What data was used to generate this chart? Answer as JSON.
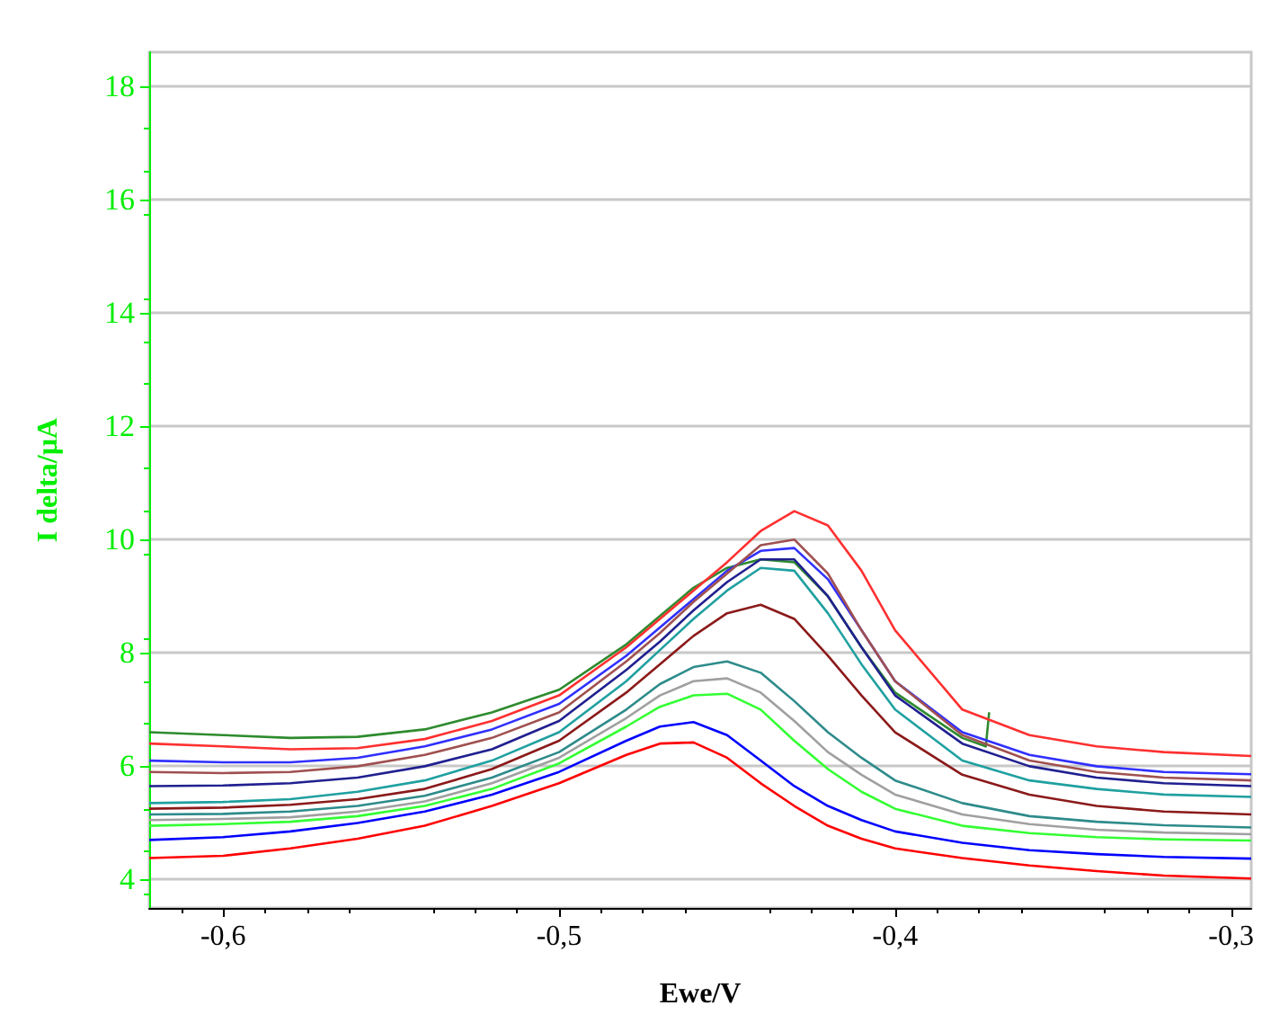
{
  "chart_data": {
    "type": "line",
    "xlabel": "Ewe/V",
    "ylabel": "I delta/µA",
    "x": [
      -0.622,
      -0.6,
      -0.58,
      -0.56,
      -0.54,
      -0.52,
      -0.5,
      -0.48,
      -0.47,
      -0.46,
      -0.45,
      -0.44,
      -0.43,
      -0.42,
      -0.41,
      -0.4,
      -0.38,
      -0.36,
      -0.34,
      -0.32,
      -0.294
    ],
    "xlim": [
      -0.622,
      -0.294
    ],
    "ylim": [
      3.5,
      18.6
    ],
    "xticks": [
      {
        "value": -0.6,
        "label": "-0,6"
      },
      {
        "value": -0.5,
        "label": "-0,5"
      },
      {
        "value": -0.4,
        "label": "-0,4"
      },
      {
        "value": -0.3,
        "label": "-0,3"
      }
    ],
    "yticks": [
      4,
      6,
      8,
      10,
      12,
      14,
      16,
      18
    ],
    "grid": "y",
    "marker": "none",
    "line_style": "solid",
    "series": [
      {
        "color": "#2e8b2e",
        "x": [
          -0.622,
          -0.6,
          -0.58,
          -0.56,
          -0.54,
          -0.52,
          -0.5,
          -0.48,
          -0.47,
          -0.46,
          -0.45,
          -0.44,
          -0.43,
          -0.42,
          -0.41,
          -0.4,
          -0.38,
          -0.373,
          -0.372
        ],
        "values": [
          6.6,
          6.55,
          6.5,
          6.52,
          6.65,
          6.95,
          7.35,
          8.15,
          8.65,
          9.15,
          9.5,
          9.65,
          9.6,
          9.0,
          8.1,
          7.3,
          6.5,
          6.35,
          6.95
        ]
      },
      {
        "color": "#ff3030",
        "values": [
          6.4,
          6.35,
          6.3,
          6.32,
          6.48,
          6.8,
          7.25,
          8.1,
          8.6,
          9.1,
          9.6,
          10.15,
          10.5,
          10.25,
          9.45,
          8.4,
          7.0,
          6.55,
          6.35,
          6.25,
          6.18
        ]
      },
      {
        "color": "#3030ff",
        "values": [
          6.1,
          6.07,
          6.07,
          6.15,
          6.35,
          6.65,
          7.1,
          7.95,
          8.45,
          8.95,
          9.45,
          9.8,
          9.85,
          9.3,
          8.4,
          7.5,
          6.6,
          6.2,
          6.0,
          5.9,
          5.86
        ]
      },
      {
        "color": "#a05050",
        "values": [
          5.9,
          5.88,
          5.9,
          6.0,
          6.2,
          6.5,
          6.95,
          7.85,
          8.35,
          8.9,
          9.4,
          9.9,
          10.0,
          9.4,
          8.4,
          7.5,
          6.55,
          6.1,
          5.9,
          5.8,
          5.75
        ]
      },
      {
        "color": "#202090",
        "values": [
          5.65,
          5.66,
          5.7,
          5.8,
          6.0,
          6.3,
          6.8,
          7.7,
          8.2,
          8.75,
          9.25,
          9.65,
          9.65,
          9.0,
          8.1,
          7.25,
          6.4,
          6.0,
          5.8,
          5.7,
          5.65
        ]
      },
      {
        "color": "#20a0a0",
        "values": [
          5.35,
          5.37,
          5.42,
          5.55,
          5.75,
          6.1,
          6.6,
          7.5,
          8.05,
          8.6,
          9.1,
          9.5,
          9.45,
          8.7,
          7.8,
          7.0,
          6.1,
          5.75,
          5.6,
          5.5,
          5.46
        ]
      },
      {
        "color": "#8b1a1a",
        "values": [
          5.25,
          5.27,
          5.32,
          5.42,
          5.6,
          5.95,
          6.45,
          7.3,
          7.8,
          8.3,
          8.7,
          8.85,
          8.6,
          7.95,
          7.25,
          6.6,
          5.85,
          5.5,
          5.3,
          5.2,
          5.15
        ]
      },
      {
        "color": "#2e8b8b",
        "values": [
          5.15,
          5.16,
          5.2,
          5.3,
          5.48,
          5.8,
          6.25,
          7.0,
          7.45,
          7.75,
          7.85,
          7.65,
          7.15,
          6.6,
          6.15,
          5.75,
          5.35,
          5.12,
          5.02,
          4.96,
          4.92
        ]
      },
      {
        "color": "#a0a0a0",
        "values": [
          5.05,
          5.07,
          5.1,
          5.2,
          5.38,
          5.7,
          6.15,
          6.85,
          7.25,
          7.5,
          7.55,
          7.3,
          6.8,
          6.25,
          5.85,
          5.5,
          5.15,
          4.98,
          4.88,
          4.83,
          4.8
        ]
      },
      {
        "color": "#33ff33",
        "values": [
          4.95,
          4.98,
          5.02,
          5.12,
          5.3,
          5.6,
          6.05,
          6.7,
          7.05,
          7.25,
          7.28,
          7.0,
          6.45,
          5.95,
          5.55,
          5.25,
          4.95,
          4.82,
          4.75,
          4.71,
          4.69
        ]
      },
      {
        "color": "#0000ff",
        "values": [
          4.7,
          4.75,
          4.85,
          5.0,
          5.2,
          5.5,
          5.9,
          6.45,
          6.7,
          6.78,
          6.55,
          6.1,
          5.65,
          5.3,
          5.05,
          4.85,
          4.65,
          4.52,
          4.45,
          4.4,
          4.37
        ]
      },
      {
        "color": "#ff0000",
        "values": [
          4.38,
          4.42,
          4.55,
          4.72,
          4.95,
          5.3,
          5.7,
          6.2,
          6.4,
          6.42,
          6.15,
          5.7,
          5.3,
          4.95,
          4.72,
          4.55,
          4.38,
          4.25,
          4.15,
          4.07,
          4.02
        ]
      }
    ]
  }
}
